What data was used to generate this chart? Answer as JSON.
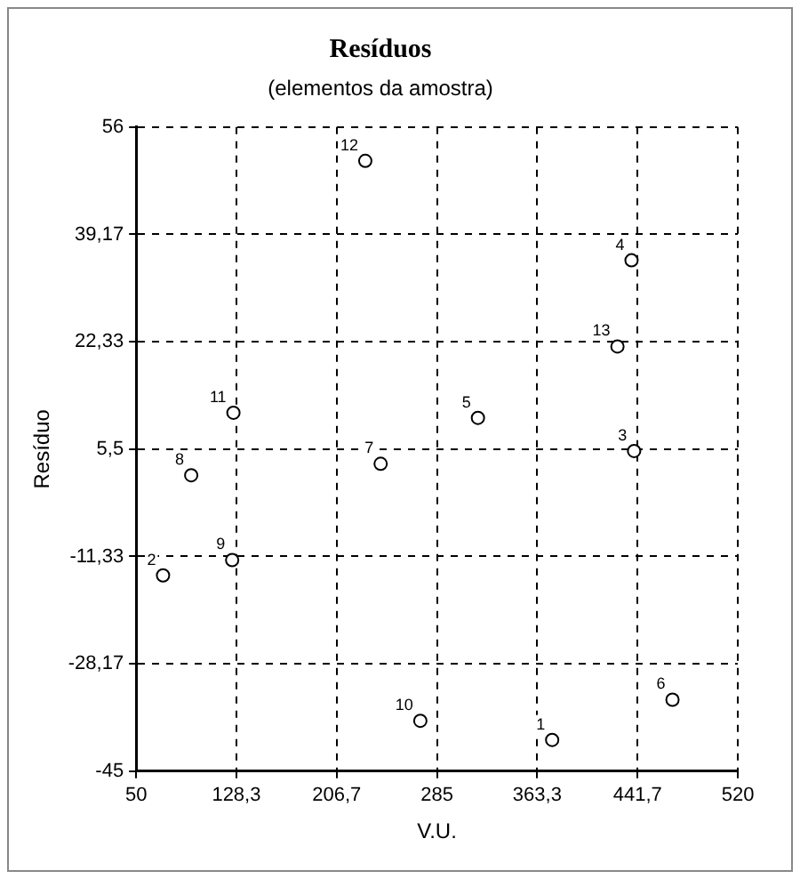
{
  "chart_data": {
    "type": "scatter",
    "title": "Resíduos",
    "subtitle": "(elementos da amostra)",
    "xlabel": "V.U.",
    "ylabel": "Resíduo",
    "x": [
      375,
      71,
      439,
      437,
      317,
      469,
      241,
      93,
      125,
      272,
      126,
      229,
      426
    ],
    "series": [
      {
        "color": "#000000",
        "values": [
          -40.1,
          -14.3,
          5.2,
          35.1,
          10.4,
          -33.8,
          3.2,
          1.4,
          -11.9,
          -37.1,
          11.2,
          50.7,
          21.6
        ]
      }
    ],
    "xlim": [
      50,
      520
    ],
    "xticks": [
      50,
      {
        "value": 128.3,
        "label": "128,3"
      },
      {
        "value": 206.7,
        "label": "206,7"
      },
      285,
      {
        "value": 363.3,
        "label": "363,3"
      },
      {
        "value": 441.7,
        "label": "441,7"
      },
      520
    ],
    "ylim": [
      -45,
      56
    ],
    "yticks": [
      -45,
      {
        "value": -28.17,
        "label": "-28,17"
      },
      {
        "value": -11.33,
        "label": "-11,33"
      },
      {
        "value": 5.5,
        "label": "5,5"
      },
      {
        "value": 22.33,
        "label": "22,33"
      },
      {
        "value": 39.17,
        "label": "39,17"
      },
      56
    ],
    "grid": true,
    "line_style": "dashed",
    "marker": "circle",
    "legend": false,
    "annotations": [
      {
        "text": "1",
        "x": 375,
        "y": -40.1
      },
      {
        "text": "2",
        "x": 71,
        "y": -14.3
      },
      {
        "text": "3",
        "x": 439,
        "y": 5.2
      },
      {
        "text": "4",
        "x": 437,
        "y": 35.1
      },
      {
        "text": "5",
        "x": 317,
        "y": 10.4
      },
      {
        "text": "6",
        "x": 469,
        "y": -33.8
      },
      {
        "text": "7",
        "x": 241,
        "y": 3.2
      },
      {
        "text": "8",
        "x": 93,
        "y": 1.4
      },
      {
        "text": "9",
        "x": 125,
        "y": -11.9
      },
      {
        "text": "10",
        "x": 272,
        "y": -37.1
      },
      {
        "text": "11",
        "x": 126,
        "y": 11.2
      },
      {
        "text": "12",
        "x": 229,
        "y": 50.7
      },
      {
        "text": "13",
        "x": 426,
        "y": 21.6
      }
    ]
  }
}
